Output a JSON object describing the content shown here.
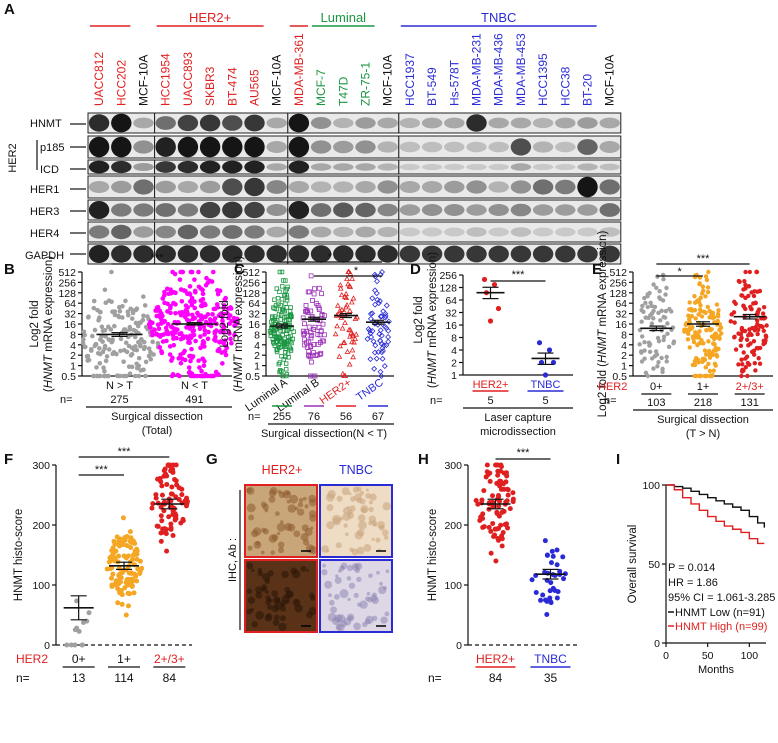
{
  "panelA": {
    "letter": "A",
    "groups": [
      {
        "name": "HER2+",
        "color": "#e02020"
      },
      {
        "name": "Luminal",
        "color": "#1a9641"
      },
      {
        "name": "TNBC",
        "color": "#2b2bd6"
      }
    ],
    "lanes": [
      {
        "name": "UACC812",
        "color": "#e02020"
      },
      {
        "name": "HCC202",
        "color": "#e02020"
      },
      {
        "name": "MCF-10A",
        "color": "#111111"
      },
      {
        "name": "HCC1954",
        "color": "#e02020"
      },
      {
        "name": "UACC893",
        "color": "#e02020"
      },
      {
        "name": "SKBR3",
        "color": "#e02020"
      },
      {
        "name": "BT-474",
        "color": "#e02020"
      },
      {
        "name": "AU565",
        "color": "#e02020"
      },
      {
        "name": "MCF-10A",
        "color": "#111111"
      },
      {
        "name": "MDA-MB-361",
        "color": "#e02020"
      },
      {
        "name": "MCF-7",
        "color": "#1a9641"
      },
      {
        "name": "T47D",
        "color": "#1a9641"
      },
      {
        "name": "ZR-75-1",
        "color": "#1a9641"
      },
      {
        "name": "MCF-10A",
        "color": "#111111"
      },
      {
        "name": "HCC1937",
        "color": "#2b2bd6"
      },
      {
        "name": "BT-549",
        "color": "#2b2bd6"
      },
      {
        "name": "Hs-578T",
        "color": "#2b2bd6"
      },
      {
        "name": "MDA-MB-231",
        "color": "#2b2bd6"
      },
      {
        "name": "MDA-MB-436",
        "color": "#2b2bd6"
      },
      {
        "name": "MDA-MB-453",
        "color": "#2b2bd6"
      },
      {
        "name": "HCC1395",
        "color": "#2b2bd6"
      },
      {
        "name": "HCC38",
        "color": "#2b2bd6"
      },
      {
        "name": "BT-20",
        "color": "#2b2bd6"
      },
      {
        "name": "MCF-10A",
        "color": "#111111"
      }
    ],
    "rows": [
      "HNMT",
      "p185",
      "ICD",
      "HER1",
      "HER3",
      "HER4",
      "GAPDH"
    ],
    "her2_label": "HER2"
  },
  "panelB": {
    "letter": "B",
    "ylabel": "Log2 fold",
    "ylabel2_italic": "HNMT",
    "ylabel2_rest": " mRNA expression",
    "yticks": [
      "0.5",
      "1",
      "2",
      "4",
      "8",
      "16",
      "32",
      "64",
      "128",
      "256",
      "512"
    ],
    "categories": [
      "N > T",
      "N < T"
    ],
    "colors": [
      "#a0a0a0",
      "#ff00ff"
    ],
    "n_label": "n=",
    "n": [
      "275",
      "491"
    ],
    "sig": "***",
    "footer1": "Surgical dissection",
    "footer2": "(Total)"
  },
  "panelC": {
    "letter": "C",
    "ylabel": "Log2 fold",
    "ylabel2_italic": "HNMT",
    "ylabel2_rest": " mRNA expression",
    "yticks": [
      "0.5",
      "1",
      "2",
      "4",
      "8",
      "16",
      "32",
      "64",
      "128",
      "256",
      "512"
    ],
    "categories": [
      "Luminal A",
      "Luminal B",
      "HER2+",
      "TNBC"
    ],
    "colors": [
      "#1a9641",
      "#9b30b8",
      "#e02020",
      "#2b2bd6"
    ],
    "n_label": "n=",
    "n": [
      "255",
      "76",
      "56",
      "67"
    ],
    "sig": [
      "*",
      "*"
    ],
    "footer": "Surgical dissection(N < T)"
  },
  "panelD": {
    "letter": "D",
    "ylabel": "Log2 fold",
    "ylabel2_italic": "HNMT",
    "ylabel2_rest": " mRNA expression",
    "yticks": [
      "1",
      "2",
      "4",
      "8",
      "16",
      "32",
      "64",
      "128",
      "256"
    ],
    "categories": [
      "HER2+",
      "TNBC"
    ],
    "colors": [
      "#e02020",
      "#2b2bd6"
    ],
    "n_label": "n=",
    "n": [
      "5",
      "5"
    ],
    "sig": "***",
    "footer1": "Laser capture",
    "footer2": "microdissection"
  },
  "panelE": {
    "letter": "E",
    "ylabel": "Log2 fold (",
    "ylabel_italic": "HNMT",
    "ylabel_rest": " mRNA expression)",
    "yticks": [
      "0.5",
      "1",
      "2",
      "4",
      "8",
      "16",
      "32",
      "64",
      "128",
      "256",
      "512"
    ],
    "x_title": "HER2",
    "categories": [
      "0+",
      "1+",
      "2+/3+"
    ],
    "colors": [
      "#a0a0a0",
      "#f5a623",
      "#e02020"
    ],
    "n_label": "n=",
    "n": [
      "103",
      "218",
      "131"
    ],
    "sig": [
      "***",
      "*"
    ],
    "footer": "Surgical dissection",
    "footer2": "(T > N)"
  },
  "panelF": {
    "letter": "F",
    "ylabel": "HNMT histo-score",
    "yticks": [
      "0",
      "100",
      "200",
      "300"
    ],
    "x_title": "HER2",
    "categories": [
      "0+",
      "1+",
      "2+/3+"
    ],
    "colors": [
      "#a0a0a0",
      "#f5a623",
      "#e02020"
    ],
    "n_label": "n=",
    "n": [
      "13",
      "114",
      "84"
    ],
    "sig": [
      "***",
      "***"
    ]
  },
  "panelG": {
    "letter": "G",
    "col_titles": [
      "HER2+",
      "TNBC"
    ],
    "col_colors": [
      "#e02020",
      "#2b2bd6"
    ],
    "row_header": "IHC, Ab :",
    "rows": [
      "HNMT",
      "HER2"
    ]
  },
  "panelH": {
    "letter": "H",
    "ylabel": "HNMT histo-score",
    "yticks": [
      "0",
      "100",
      "200",
      "300"
    ],
    "categories": [
      "HER2+",
      "TNBC"
    ],
    "colors": [
      "#e02020",
      "#2b2bd6"
    ],
    "n_label": "n=",
    "n": [
      "84",
      "35"
    ],
    "sig": "***"
  },
  "panelI": {
    "letter": "I",
    "ylabel": "Overall survival",
    "xlabel": "Months",
    "yticks": [
      "0",
      "50",
      "100"
    ],
    "xticks": [
      "0",
      "50",
      "100"
    ],
    "stats": [
      "P = 0.014",
      "HR = 1.86",
      "95% CI = 1.061-3.285"
    ],
    "legend": [
      {
        "label": "HNMT Low (n=91)",
        "color": "#111111"
      },
      {
        "label": "HNMT High (n=99)",
        "color": "#e02020"
      }
    ]
  },
  "chart_data": [
    {
      "panel": "B",
      "type": "scatter",
      "scale": "log2",
      "ylim": [
        0.5,
        512
      ],
      "categories": [
        "N > T",
        "N < T"
      ],
      "series": [
        {
          "name": "N > T",
          "mean": 8
        },
        {
          "name": "N < T",
          "mean": 16
        }
      ],
      "significance": "***"
    },
    {
      "panel": "C",
      "type": "scatter",
      "scale": "log2",
      "ylim": [
        0.5,
        512
      ],
      "categories": [
        "Luminal A",
        "Luminal B",
        "HER2+",
        "TNBC"
      ],
      "series": [
        {
          "name": "Luminal A",
          "mean": 14
        },
        {
          "name": "Luminal B",
          "mean": 22
        },
        {
          "name": "HER2+",
          "mean": 28
        },
        {
          "name": "TNBC",
          "mean": 18
        }
      ]
    },
    {
      "panel": "D",
      "type": "scatter",
      "scale": "log2",
      "ylim": [
        1,
        256
      ],
      "categories": [
        "HER2+",
        "TNBC"
      ],
      "series": [
        {
          "name": "HER2+",
          "values": [
            200,
            150,
            96,
            40,
            20
          ],
          "mean": 96
        },
        {
          "name": "TNBC",
          "values": [
            6,
            4,
            2,
            2,
            1
          ],
          "mean": 2.5
        }
      ],
      "significance": "***"
    },
    {
      "panel": "E",
      "type": "scatter",
      "scale": "log2",
      "ylim": [
        0.5,
        512
      ],
      "categories": [
        "0+",
        "1+",
        "2+/3+"
      ],
      "series": [
        {
          "name": "0+",
          "mean": 12
        },
        {
          "name": "1+",
          "mean": 16
        },
        {
          "name": "2+/3+",
          "mean": 26
        }
      ]
    },
    {
      "panel": "F",
      "type": "scatter",
      "ylim": [
        0,
        300
      ],
      "categories": [
        "0+",
        "1+",
        "2+/3+"
      ],
      "series": [
        {
          "name": "0+",
          "mean": 60
        },
        {
          "name": "1+",
          "mean": 130
        },
        {
          "name": "2+/3+",
          "mean": 235
        }
      ]
    },
    {
      "panel": "H",
      "type": "scatter",
      "ylim": [
        0,
        300
      ],
      "categories": [
        "HER2+",
        "TNBC"
      ],
      "series": [
        {
          "name": "HER2+",
          "mean": 235
        },
        {
          "name": "TNBC",
          "mean": 118
        }
      ],
      "significance": "***"
    },
    {
      "panel": "I",
      "type": "line",
      "xlim": [
        0,
        120
      ],
      "ylim": [
        0,
        100
      ],
      "series": [
        {
          "name": "HNMT Low (n=91)",
          "x": [
            0,
            10,
            20,
            30,
            40,
            50,
            60,
            70,
            80,
            90,
            100,
            110,
            118
          ],
          "y": [
            100,
            99,
            98,
            96,
            94,
            92,
            90,
            88,
            86,
            84,
            80,
            76,
            73
          ]
        },
        {
          "name": "HNMT High (n=99)",
          "x": [
            0,
            10,
            20,
            30,
            40,
            50,
            60,
            70,
            80,
            90,
            100,
            110,
            118
          ],
          "y": [
            100,
            97,
            92,
            88,
            84,
            80,
            77,
            74,
            72,
            70,
            66,
            63,
            63
          ]
        }
      ]
    }
  ]
}
